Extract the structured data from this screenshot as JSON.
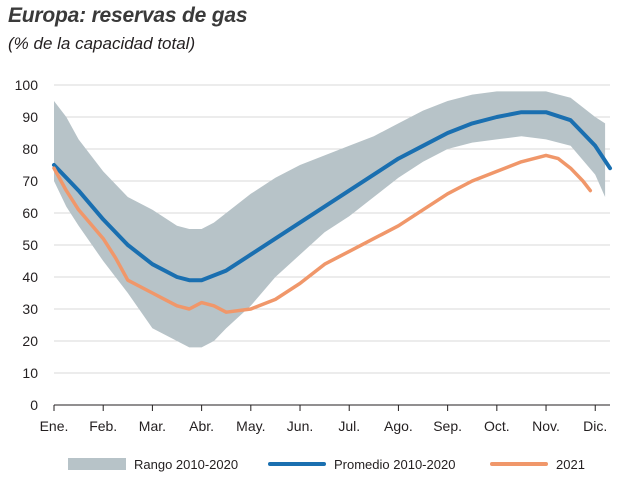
{
  "title": "Europa: reservas de gas",
  "subtitle": "(% de la capacidad total)",
  "colors": {
    "band": "#b7c3c8",
    "average": "#1a6fb0",
    "y2021": "#f0976a",
    "grid": "#d9d9d9",
    "axis": "#231f20"
  },
  "chart_data": {
    "type": "line",
    "title": "Europa: reservas de gas",
    "subtitle": "(% de la capacidad total)",
    "xlabel": "",
    "ylabel": "",
    "x_ticks": [
      "Ene.",
      "Feb.",
      "Mar.",
      "Abr.",
      "May.",
      "Jun.",
      "Jul.",
      "Ago.",
      "Sep.",
      "Oct.",
      "Nov.",
      "Dic."
    ],
    "ylim": [
      0,
      100
    ],
    "y_ticks": [
      0,
      10,
      20,
      30,
      40,
      50,
      60,
      70,
      80,
      90,
      100
    ],
    "grid": true,
    "legend_position": "bottom",
    "series": [
      {
        "name": "Rango 2010-2020",
        "kind": "band",
        "x": [
          0,
          0.25,
          0.5,
          1,
          1.5,
          2,
          2.5,
          2.75,
          3,
          3.25,
          3.5,
          4,
          4.5,
          5,
          5.5,
          6,
          6.5,
          7,
          7.5,
          8,
          8.5,
          9,
          9.5,
          10,
          10.5,
          11,
          11.2
        ],
        "upper": [
          95,
          90,
          83,
          73,
          65,
          61,
          56,
          55,
          55,
          57,
          60,
          66,
          71,
          75,
          78,
          81,
          84,
          88,
          92,
          95,
          97,
          98,
          98,
          98,
          96,
          90,
          88
        ],
        "lower": [
          70,
          62,
          56,
          45,
          35,
          24,
          20,
          18,
          18,
          20,
          24,
          31,
          40,
          47,
          54,
          59,
          65,
          71,
          76,
          80,
          82,
          83,
          84,
          83,
          81,
          72,
          65
        ]
      },
      {
        "name": "Promedio 2010-2020",
        "kind": "line",
        "x": [
          0,
          0.25,
          0.5,
          1,
          1.5,
          2,
          2.5,
          2.75,
          3,
          3.5,
          4,
          4.5,
          5,
          5.5,
          6,
          6.5,
          7,
          7.5,
          8,
          8.5,
          9,
          9.5,
          10,
          10.5,
          11,
          11.3
        ],
        "y": [
          75,
          71,
          67,
          58,
          50,
          44,
          40,
          39,
          39,
          42,
          47,
          52,
          57,
          62,
          67,
          72,
          77,
          81,
          85,
          88,
          90,
          91.5,
          91.5,
          89,
          81,
          74
        ]
      },
      {
        "name": "2021",
        "kind": "line",
        "x": [
          0,
          0.25,
          0.5,
          1,
          1.25,
          1.5,
          2,
          2.25,
          2.5,
          2.75,
          3,
          3.25,
          3.5,
          4,
          4.5,
          5,
          5.5,
          6,
          6.5,
          7,
          7.5,
          8,
          8.5,
          9,
          9.5,
          10,
          10.25,
          10.5,
          10.75,
          10.9
        ],
        "y": [
          74,
          67,
          61,
          52,
          46,
          39,
          35,
          33,
          31,
          30,
          32,
          31,
          29,
          30,
          33,
          38,
          44,
          48,
          52,
          56,
          61,
          66,
          70,
          73,
          76,
          78,
          77,
          74,
          70,
          67
        ]
      }
    ]
  },
  "legend": {
    "band_label": "Rango 2010-2020",
    "average_label": "Promedio 2010-2020",
    "y2021_label": "2021"
  }
}
